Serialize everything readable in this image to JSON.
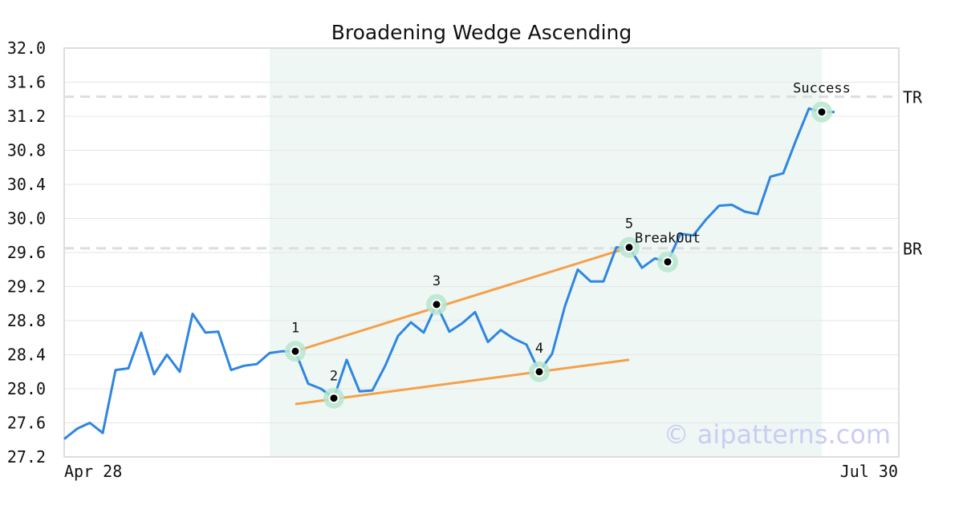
{
  "chart_data": {
    "type": "line",
    "title": "Broadening Wedge Ascending",
    "x_labels": {
      "start": "Apr 28",
      "end": "Jul 30"
    },
    "ylim": [
      27.2,
      32.0
    ],
    "y_ticks": [
      "27.2",
      "27.6",
      "28.0",
      "28.4",
      "28.8",
      "29.2",
      "29.6",
      "30.0",
      "30.4",
      "30.8",
      "31.2",
      "31.6",
      "32.0"
    ],
    "grid": true,
    "series": [
      {
        "values": [
          27.41,
          27.53,
          27.6,
          27.48,
          28.22,
          28.24,
          28.66,
          28.17,
          28.4,
          28.2,
          28.88,
          28.66,
          28.67,
          28.22,
          28.27,
          28.29,
          28.42,
          28.44,
          28.44,
          28.06,
          28.0,
          27.89,
          28.34,
          27.97,
          27.98,
          28.27,
          28.62,
          28.78,
          28.66,
          28.99,
          28.67,
          28.77,
          28.9,
          28.55,
          28.69,
          28.59,
          28.52,
          28.2,
          28.41,
          28.97,
          29.4,
          29.26,
          29.26,
          29.66,
          29.66,
          29.42,
          29.53,
          29.49,
          29.82,
          29.8,
          29.99,
          30.15,
          30.16,
          30.08,
          30.05,
          30.49,
          30.53,
          30.92,
          31.29,
          31.25,
          31.25
        ]
      }
    ],
    "highlight_range": [
      16,
      59
    ],
    "levels": [
      {
        "label": "TR",
        "value": 31.43
      },
      {
        "label": "BR",
        "value": 29.65
      }
    ],
    "trendlines": [
      {
        "x": [
          18,
          44
        ],
        "y": [
          28.44,
          29.66
        ]
      },
      {
        "x": [
          18,
          44
        ],
        "y": [
          27.82,
          28.34
        ]
      }
    ],
    "points": [
      {
        "label": "1",
        "x": 18,
        "y": 28.44
      },
      {
        "label": "2",
        "x": 21,
        "y": 27.89
      },
      {
        "label": "3",
        "x": 29,
        "y": 28.99
      },
      {
        "label": "4",
        "x": 37,
        "y": 28.2
      },
      {
        "label": "5",
        "x": 44,
        "y": 29.66
      },
      {
        "label": "BreakOut",
        "x": 47,
        "y": 29.49
      },
      {
        "label": "Success",
        "x": 59,
        "y": 31.25
      }
    ],
    "colors": {
      "line": "#2f86e0",
      "trend": "#f5a04a",
      "highlight": "#eef7f3",
      "marker_halo": "#b7e6cf",
      "level": "#dddddd",
      "grid": "#e6e6e6"
    }
  },
  "watermark": "© aipatterns.com"
}
